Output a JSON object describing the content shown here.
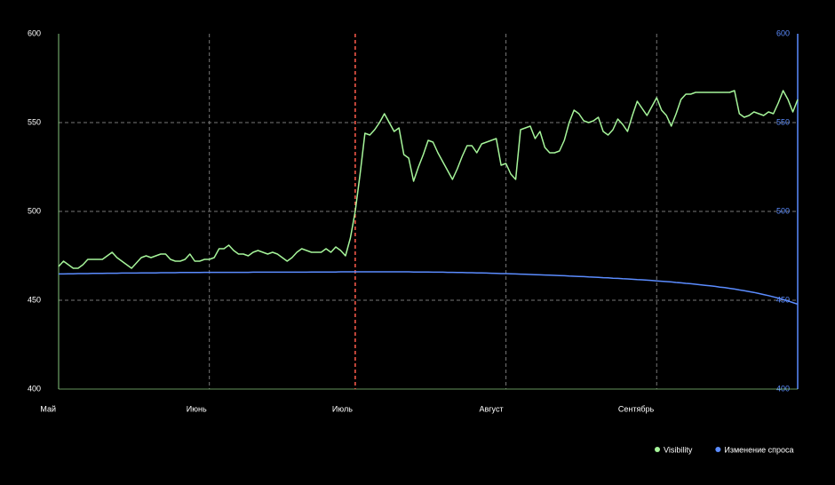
{
  "chart_data": {
    "type": "line",
    "categories": [
      "Май",
      null,
      null,
      null,
      null,
      null,
      null,
      null,
      null,
      null,
      null,
      null,
      null,
      null,
      null,
      null,
      null,
      null,
      null,
      null,
      null,
      null,
      null,
      null,
      null,
      null,
      null,
      null,
      null,
      null,
      null,
      "Июнь",
      null,
      null,
      null,
      null,
      null,
      null,
      null,
      null,
      null,
      null,
      null,
      null,
      null,
      null,
      null,
      null,
      null,
      null,
      null,
      null,
      null,
      null,
      null,
      null,
      null,
      null,
      null,
      null,
      null,
      "Июль",
      null,
      null,
      null,
      null,
      null,
      null,
      null,
      null,
      null,
      null,
      null,
      null,
      null,
      null,
      null,
      null,
      null,
      null,
      null,
      null,
      null,
      null,
      null,
      null,
      null,
      null,
      null,
      null,
      null,
      null,
      "Август",
      null,
      null,
      null,
      null,
      null,
      null,
      null,
      null,
      null,
      null,
      null,
      null,
      null,
      null,
      null,
      null,
      null,
      null,
      null,
      null,
      null,
      null,
      null,
      null,
      null,
      null,
      null,
      null,
      null,
      null,
      "Сентябрь",
      null,
      null,
      null,
      null,
      null,
      null,
      null,
      null,
      null,
      null,
      null,
      null,
      null,
      null,
      null,
      null,
      null,
      null,
      null,
      null,
      null,
      null,
      null,
      null,
      null,
      null,
      null,
      null,
      null
    ],
    "series": [
      {
        "name": "Visibility",
        "color": "#a6f59a",
        "values": [
          469,
          472,
          470,
          468,
          468,
          470,
          473,
          473,
          473,
          473,
          475,
          477,
          474,
          472,
          470,
          468,
          471,
          474,
          475,
          474,
          475,
          476,
          476,
          473,
          472,
          472,
          473,
          476,
          472,
          472,
          473,
          473,
          474,
          479,
          479,
          481,
          478,
          476,
          476,
          475,
          477,
          478,
          477,
          476,
          477,
          476,
          474,
          472,
          474,
          477,
          479,
          478,
          477,
          477,
          477,
          479,
          477,
          480,
          478,
          475,
          485,
          500,
          521,
          544,
          543,
          546,
          550,
          555,
          550,
          545,
          547,
          532,
          530,
          517,
          525,
          532,
          540,
          539,
          533,
          528,
          523,
          518,
          524,
          531,
          537,
          537,
          533,
          538,
          539,
          540,
          541,
          526,
          527,
          521,
          518,
          546,
          547,
          548,
          541,
          545,
          536,
          533,
          533,
          534,
          540,
          550,
          557,
          555,
          551,
          550,
          551,
          553,
          545,
          543,
          546,
          552,
          549,
          545,
          554,
          562,
          558,
          554,
          559,
          564,
          557,
          554,
          548,
          555,
          563,
          566,
          566,
          567,
          567,
          567,
          567,
          567,
          567,
          567,
          567,
          568,
          555,
          553,
          554,
          556,
          555,
          554,
          556,
          555,
          561,
          568,
          563,
          556,
          563
        ]
      },
      {
        "name": "Изменение спроса",
        "color": "#5b8cff",
        "axis": "y2",
        "values": [
          464.8,
          464.8,
          464.9,
          464.9,
          465.0,
          465.0,
          465.0,
          465.1,
          465.1,
          465.1,
          465.2,
          465.2,
          465.2,
          465.3,
          465.3,
          465.3,
          465.3,
          465.4,
          465.4,
          465.4,
          465.4,
          465.5,
          465.5,
          465.5,
          465.5,
          465.6,
          465.6,
          465.6,
          465.6,
          465.6,
          465.7,
          465.7,
          465.7,
          465.7,
          465.7,
          465.7,
          465.7,
          465.7,
          465.7,
          465.7,
          465.8,
          465.8,
          465.8,
          465.8,
          465.8,
          465.8,
          465.8,
          465.8,
          465.8,
          465.8,
          465.8,
          465.8,
          465.9,
          465.9,
          465.9,
          465.9,
          465.9,
          465.9,
          466.0,
          466.0,
          466.0,
          466.0,
          466.0,
          466.0,
          466.0,
          466.0,
          466.0,
          466.0,
          466.0,
          466.0,
          466.0,
          466.0,
          466.0,
          465.9,
          465.9,
          465.9,
          465.9,
          465.8,
          465.8,
          465.8,
          465.7,
          465.7,
          465.6,
          465.6,
          465.5,
          465.5,
          465.4,
          465.4,
          465.3,
          465.2,
          465.1,
          465.0,
          465.0,
          464.9,
          464.8,
          464.7,
          464.6,
          464.5,
          464.4,
          464.3,
          464.2,
          464.1,
          464.0,
          463.9,
          463.8,
          463.6,
          463.5,
          463.4,
          463.3,
          463.1,
          463.0,
          462.9,
          462.7,
          462.6,
          462.4,
          462.3,
          462.1,
          462.0,
          461.8,
          461.6,
          461.5,
          461.3,
          461.1,
          460.9,
          460.7,
          460.5,
          460.3,
          460.0,
          459.8,
          459.5,
          459.3,
          459.0,
          458.7,
          458.4,
          458.1,
          457.8,
          457.4,
          457.1,
          456.7,
          456.3,
          455.8,
          455.4,
          454.9,
          454.4,
          453.8,
          453.2,
          452.6,
          451.9,
          451.2,
          450.4,
          449.6,
          448.7,
          447.8
        ]
      }
    ],
    "ylim": [
      400,
      600
    ],
    "yticks": [
      400,
      450,
      500,
      550,
      600
    ],
    "y2lim": [
      400,
      600
    ],
    "y2ticks": [
      400,
      450,
      500,
      550,
      600
    ],
    "grid": true,
    "legend": "bottom-right",
    "vertical_line": {
      "category": 61,
      "color": "#ff5a4a"
    }
  }
}
